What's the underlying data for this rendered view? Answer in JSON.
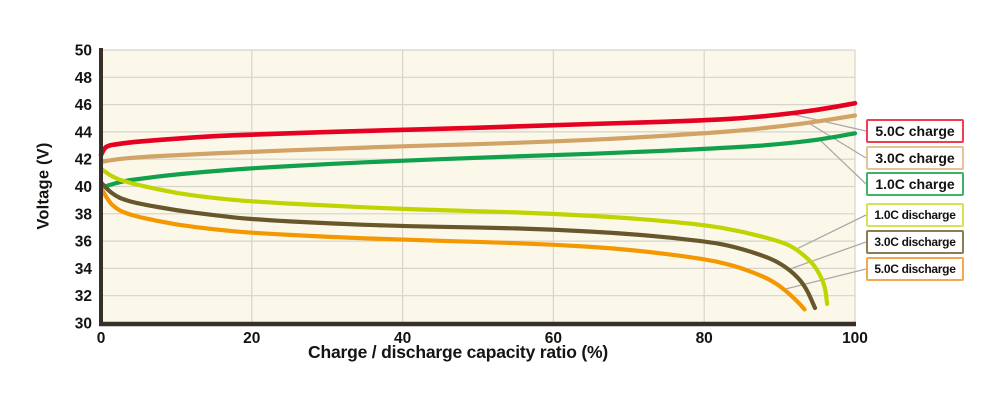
{
  "chart_data": {
    "type": "line",
    "title": "",
    "xlabel": "Charge / discharge capacity ratio (%)",
    "ylabel": "Voltage (V)",
    "xlim": [
      0,
      100
    ],
    "ylim": [
      30,
      50
    ],
    "x_ticks": [
      0,
      20,
      40,
      60,
      80,
      100
    ],
    "y_ticks": [
      30,
      32,
      34,
      36,
      38,
      40,
      42,
      44,
      46,
      48,
      50
    ],
    "grid": true,
    "legend_position": "right-outside",
    "colors": {
      "plot_bg": "#fbf8ea",
      "grid": "#d6d4cb",
      "axis": "#383028",
      "leader_line": "#aaaaaa",
      "text": "#161310"
    },
    "series": [
      {
        "name": "5.0C charge",
        "color": "#e60021",
        "legend_border": "#ef3e51",
        "points": [
          [
            0,
            42.3
          ],
          [
            0.4,
            42.8
          ],
          [
            1,
            43.0
          ],
          [
            2,
            43.1
          ],
          [
            5,
            43.3
          ],
          [
            10,
            43.5
          ],
          [
            15,
            43.7
          ],
          [
            20,
            43.8
          ],
          [
            30,
            44.0
          ],
          [
            40,
            44.15
          ],
          [
            50,
            44.3
          ],
          [
            60,
            44.5
          ],
          [
            70,
            44.65
          ],
          [
            80,
            44.85
          ],
          [
            85,
            45.0
          ],
          [
            90,
            45.25
          ],
          [
            95,
            45.6
          ],
          [
            100,
            46.1
          ]
        ]
      },
      {
        "name": "3.0C charge",
        "color": "#d2a366",
        "legend_border": "#e7c295",
        "points": [
          [
            0,
            41.8
          ],
          [
            2,
            42.0
          ],
          [
            5,
            42.15
          ],
          [
            10,
            42.3
          ],
          [
            20,
            42.55
          ],
          [
            30,
            42.75
          ],
          [
            40,
            42.95
          ],
          [
            50,
            43.1
          ],
          [
            60,
            43.3
          ],
          [
            70,
            43.55
          ],
          [
            80,
            43.9
          ],
          [
            85,
            44.1
          ],
          [
            90,
            44.4
          ],
          [
            95,
            44.75
          ],
          [
            100,
            45.2
          ]
        ]
      },
      {
        "name": "1.0C charge",
        "color": "#11a04b",
        "legend_border": "#3db36b",
        "points": [
          [
            0,
            39.9
          ],
          [
            1,
            40.1
          ],
          [
            3,
            40.4
          ],
          [
            5,
            40.55
          ],
          [
            10,
            40.9
          ],
          [
            20,
            41.35
          ],
          [
            30,
            41.65
          ],
          [
            40,
            41.9
          ],
          [
            50,
            42.1
          ],
          [
            60,
            42.3
          ],
          [
            70,
            42.5
          ],
          [
            80,
            42.75
          ],
          [
            85,
            42.9
          ],
          [
            90,
            43.1
          ],
          [
            95,
            43.4
          ],
          [
            100,
            43.9
          ]
        ]
      },
      {
        "name": "1.0C discharge",
        "color": "#bfd400",
        "legend_border": "#d9e253",
        "points": [
          [
            0,
            41.3
          ],
          [
            1,
            40.9
          ],
          [
            2,
            40.6
          ],
          [
            3,
            40.4
          ],
          [
            5,
            40.1
          ],
          [
            10,
            39.5
          ],
          [
            15,
            39.15
          ],
          [
            20,
            38.9
          ],
          [
            30,
            38.6
          ],
          [
            40,
            38.35
          ],
          [
            50,
            38.2
          ],
          [
            60,
            38.0
          ],
          [
            70,
            37.7
          ],
          [
            80,
            37.2
          ],
          [
            85,
            36.7
          ],
          [
            90,
            36.0
          ],
          [
            92,
            35.5
          ],
          [
            94,
            34.6
          ],
          [
            95,
            33.9
          ],
          [
            96,
            32.8
          ],
          [
            96.3,
            31.4
          ]
        ]
      },
      {
        "name": "3.0C discharge",
        "color": "#67572a",
        "legend_border": "#8d7b52",
        "points": [
          [
            0,
            40.3
          ],
          [
            1,
            39.7
          ],
          [
            2,
            39.3
          ],
          [
            3,
            39.05
          ],
          [
            5,
            38.75
          ],
          [
            10,
            38.25
          ],
          [
            15,
            37.9
          ],
          [
            20,
            37.6
          ],
          [
            30,
            37.3
          ],
          [
            40,
            37.1
          ],
          [
            50,
            37.0
          ],
          [
            60,
            36.85
          ],
          [
            70,
            36.55
          ],
          [
            80,
            36.0
          ],
          [
            84,
            35.6
          ],
          [
            88,
            34.9
          ],
          [
            90,
            34.4
          ],
          [
            92,
            33.6
          ],
          [
            93.5,
            32.6
          ],
          [
            94.7,
            31.1
          ]
        ]
      },
      {
        "name": "5.0C discharge",
        "color": "#f39800",
        "legend_border": "#f4a84e",
        "points": [
          [
            0,
            39.9
          ],
          [
            1,
            38.9
          ],
          [
            2,
            38.4
          ],
          [
            3,
            38.1
          ],
          [
            5,
            37.75
          ],
          [
            10,
            37.2
          ],
          [
            15,
            36.85
          ],
          [
            20,
            36.6
          ],
          [
            30,
            36.3
          ],
          [
            40,
            36.1
          ],
          [
            50,
            35.95
          ],
          [
            60,
            35.75
          ],
          [
            70,
            35.4
          ],
          [
            80,
            34.7
          ],
          [
            84,
            34.2
          ],
          [
            87,
            33.6
          ],
          [
            89,
            33.1
          ],
          [
            91,
            32.3
          ],
          [
            92.5,
            31.5
          ],
          [
            93.3,
            31.0
          ]
        ]
      }
    ]
  }
}
